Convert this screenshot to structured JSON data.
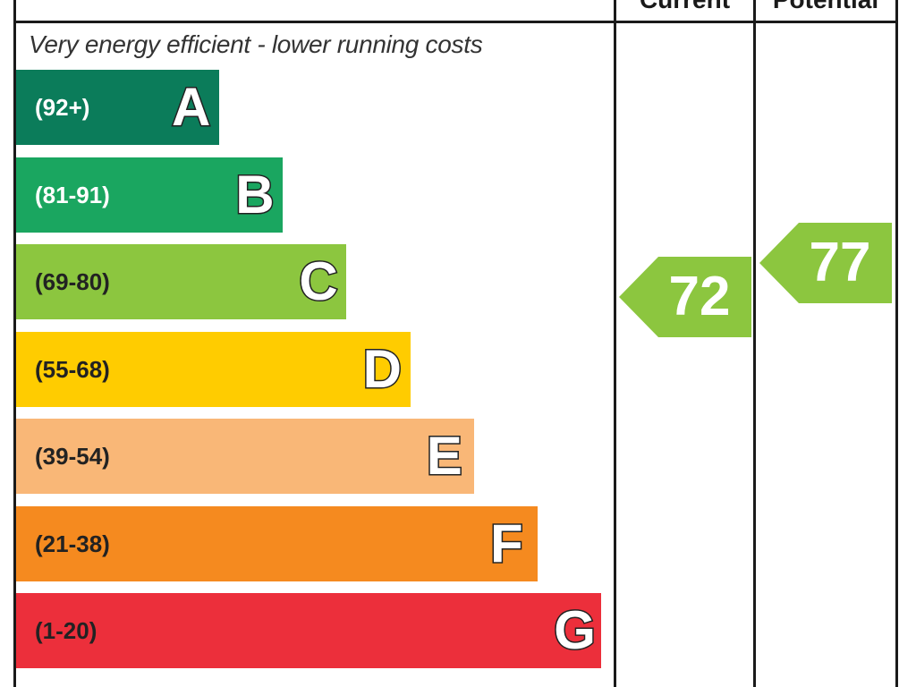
{
  "chart_data": {
    "type": "bar",
    "caption": "Very energy efficient - lower running costs",
    "columns": {
      "current": "Current",
      "potential": "Potential"
    },
    "bands": [
      {
        "letter": "A",
        "range": "(92+)",
        "min": 92,
        "max": 100,
        "color": "#0b7c5a",
        "text_color": "#ffffff"
      },
      {
        "letter": "B",
        "range": "(81-91)",
        "min": 81,
        "max": 91,
        "color": "#1aa660",
        "text_color": "#ffffff"
      },
      {
        "letter": "C",
        "range": "(69-80)",
        "min": 69,
        "max": 80,
        "color": "#8cc63f",
        "text_color": "#222222"
      },
      {
        "letter": "D",
        "range": "(55-68)",
        "min": 55,
        "max": 68,
        "color": "#ffcc00",
        "text_color": "#222222"
      },
      {
        "letter": "E",
        "range": "(39-54)",
        "min": 39,
        "max": 54,
        "color": "#f9b777",
        "text_color": "#222222"
      },
      {
        "letter": "F",
        "range": "(21-38)",
        "min": 21,
        "max": 38,
        "color": "#f58a1f",
        "text_color": "#222222"
      },
      {
        "letter": "G",
        "range": "(1-20)",
        "min": 1,
        "max": 20,
        "color": "#ec2f3b",
        "text_color": "#222222"
      }
    ],
    "ratings": {
      "current": {
        "value": 72,
        "band": "C",
        "color": "#8cc63f"
      },
      "potential": {
        "value": 77,
        "band": "C",
        "color": "#8cc63f"
      }
    }
  }
}
